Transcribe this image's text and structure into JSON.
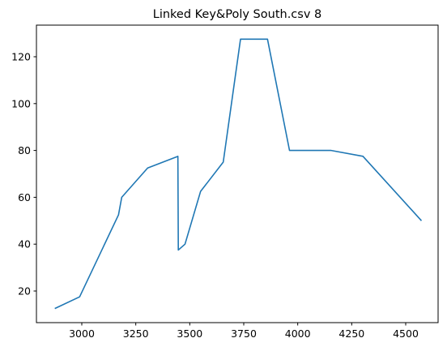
{
  "chart_data": {
    "type": "line",
    "title": "Linked Key&Poly South.csv 8",
    "xlabel": "",
    "ylabel": "",
    "xlim": [
      2790,
      4650
    ],
    "ylim": [
      6.5,
      133.5
    ],
    "grid": false,
    "xticks": [
      3000,
      3250,
      3500,
      3750,
      4000,
      4250,
      4500
    ],
    "yticks": [
      20,
      40,
      60,
      80,
      100,
      120
    ],
    "series": [
      {
        "color": "#1f77b4",
        "x": [
          2875,
          2990,
          3170,
          3185,
          3305,
          3445,
          3447,
          3478,
          3550,
          3655,
          3735,
          3860,
          3962,
          4155,
          4302,
          4573
        ],
        "y": [
          12.5,
          17.5,
          52.5,
          60,
          72.5,
          77.5,
          37.5,
          40,
          62.5,
          75,
          127.5,
          127.5,
          80,
          80,
          77.5,
          50
        ]
      }
    ]
  }
}
